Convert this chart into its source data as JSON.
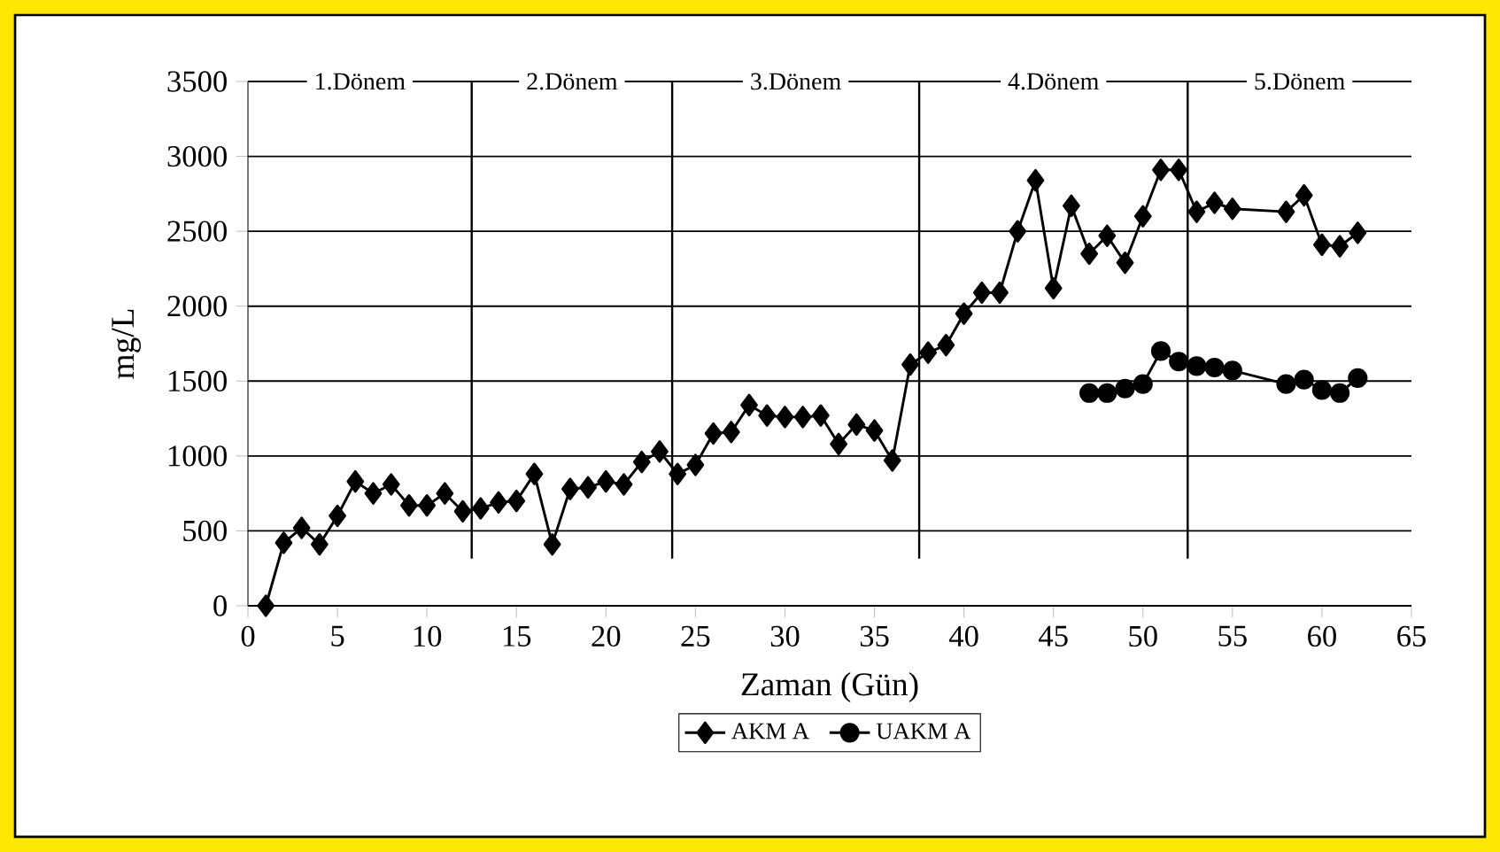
{
  "chart_data": {
    "type": "line",
    "xlabel": "Zaman (Gün)",
    "ylabel": "mg/L",
    "xlim": [
      0,
      65
    ],
    "xticks": [
      0,
      5,
      10,
      15,
      20,
      25,
      30,
      35,
      40,
      45,
      50,
      55,
      60,
      65
    ],
    "ylim": [
      0,
      3500
    ],
    "yticks": [
      0,
      500,
      1000,
      1500,
      2000,
      2500,
      3000,
      3500
    ],
    "grid": "y",
    "legend": "bottom",
    "line_style": "solid",
    "series": [
      {
        "name": "AKM A",
        "color": "#000000",
        "marker": "diamond",
        "x": [
          1,
          2,
          3,
          4,
          5,
          6,
          7,
          8,
          9,
          10,
          11,
          12,
          13,
          14,
          15,
          16,
          17,
          18,
          19,
          20,
          21,
          22,
          23,
          24,
          25,
          26,
          27,
          28,
          29,
          30,
          31,
          32,
          33,
          34,
          35,
          36,
          37,
          38,
          39,
          40,
          41,
          42,
          43,
          44,
          45,
          46,
          47,
          48,
          49,
          50,
          51,
          52,
          53,
          54,
          55,
          58,
          59,
          60,
          61,
          62
        ],
        "values": [
          0,
          420,
          520,
          410,
          600,
          830,
          750,
          810,
          670,
          670,
          750,
          630,
          650,
          690,
          700,
          880,
          410,
          780,
          790,
          830,
          810,
          960,
          1030,
          880,
          940,
          1150,
          1160,
          1340,
          1270,
          1260,
          1260,
          1270,
          1080,
          1210,
          1170,
          970,
          1610,
          1690,
          1740,
          1950,
          2090,
          2090,
          2500,
          2840,
          2120,
          2670,
          2350,
          2470,
          2290,
          2600,
          2910,
          2910,
          2630,
          2690,
          2650,
          2630,
          2740,
          2410,
          2400,
          2490
        ]
      },
      {
        "name": "UAKM A",
        "color": "#000000",
        "marker": "circle",
        "x": [
          47,
          48,
          49,
          50,
          51,
          52,
          53,
          54,
          55,
          58,
          59,
          60,
          61,
          62
        ],
        "values": [
          1420,
          1420,
          1450,
          1480,
          1700,
          1630,
          1600,
          1590,
          1570,
          1480,
          1510,
          1440,
          1420,
          1520
        ]
      }
    ],
    "ref_lines": [
      {
        "axis": "x",
        "value": 12.5
      },
      {
        "axis": "x",
        "value": 23.7
      },
      {
        "axis": "x",
        "value": 37.5
      },
      {
        "axis": "x",
        "value": 52.5
      }
    ],
    "annotations": [
      "1.Dönem",
      "2.Dönem",
      "3.Dönem",
      "4.Dönem",
      "5.Dönem"
    ]
  }
}
